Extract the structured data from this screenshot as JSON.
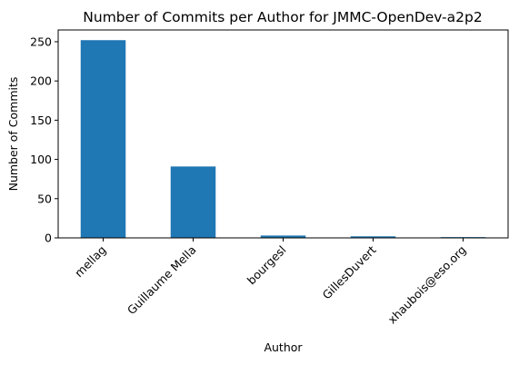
{
  "chart_data": {
    "type": "bar",
    "title": "Number of Commits per Author for JMMC-OpenDev-a2p2",
    "xlabel": "Author",
    "ylabel": "Number of Commits",
    "categories": [
      "mellag",
      "Guillaume Mella",
      "bourgesl",
      "GillesDuvert",
      "xhaubois@eso.org"
    ],
    "values": [
      252,
      91,
      3,
      2,
      1
    ],
    "ylim": [
      0,
      265
    ],
    "yticks": [
      "0",
      "50",
      "100",
      "150",
      "200",
      "250"
    ],
    "bar_color": "#1f77b4",
    "grid": false,
    "legend": "none"
  }
}
